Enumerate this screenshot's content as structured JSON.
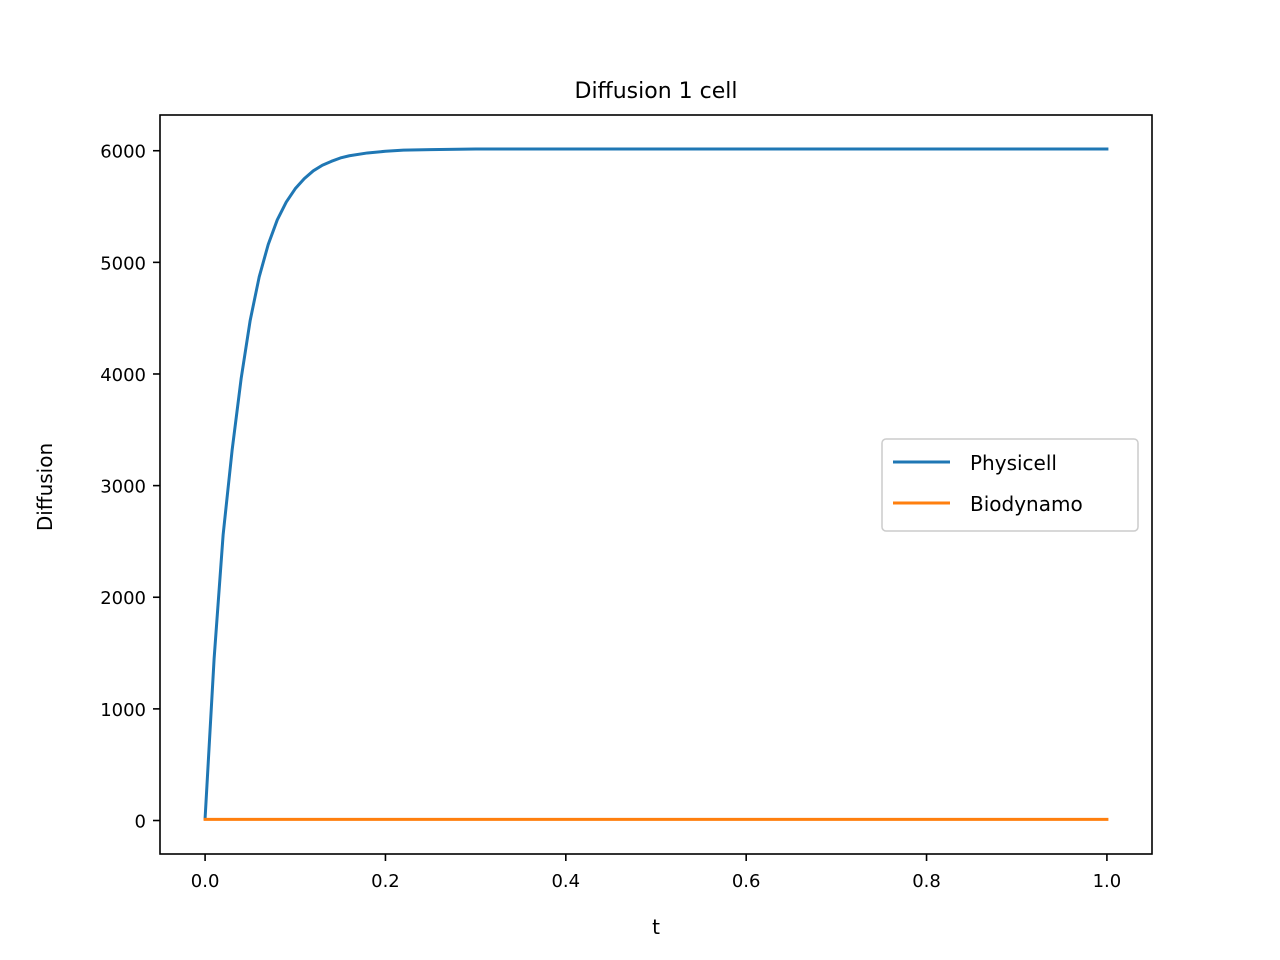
{
  "chart_data": {
    "type": "line",
    "title": "Diffusion 1 cell",
    "xlabel": "t",
    "ylabel": "Diffusion",
    "xlim": [
      -0.05,
      1.05
    ],
    "ylim": [
      -300,
      6320
    ],
    "xticks": [
      0.0,
      0.2,
      0.4,
      0.6,
      0.8,
      1.0
    ],
    "xtick_labels": [
      "0.0",
      "0.2",
      "0.4",
      "0.6",
      "0.8",
      "1.0"
    ],
    "yticks": [
      0,
      1000,
      2000,
      3000,
      4000,
      5000,
      6000
    ],
    "ytick_labels": [
      "0",
      "1000",
      "2000",
      "3000",
      "4000",
      "5000",
      "6000"
    ],
    "grid": false,
    "legend_position": "center-right",
    "series": [
      {
        "name": "Physicell",
        "color": "#1f77b4",
        "x": [
          0.0,
          0.01,
          0.02,
          0.03,
          0.04,
          0.05,
          0.06,
          0.07,
          0.08,
          0.09,
          0.1,
          0.11,
          0.12,
          0.13,
          0.14,
          0.15,
          0.16,
          0.18,
          0.2,
          0.22,
          0.25,
          0.3,
          0.4,
          0.6,
          0.8,
          1.0
        ],
        "y": [
          20,
          1450,
          2560,
          3320,
          3960,
          4480,
          4870,
          5160,
          5380,
          5540,
          5660,
          5750,
          5820,
          5870,
          5905,
          5935,
          5955,
          5980,
          5995,
          6005,
          6010,
          6015,
          6015,
          6015,
          6015,
          6015
        ]
      },
      {
        "name": "Biodynamo",
        "color": "#ff7f0e",
        "x": [
          0.0,
          1.0
        ],
        "y": [
          10,
          10
        ]
      }
    ]
  }
}
